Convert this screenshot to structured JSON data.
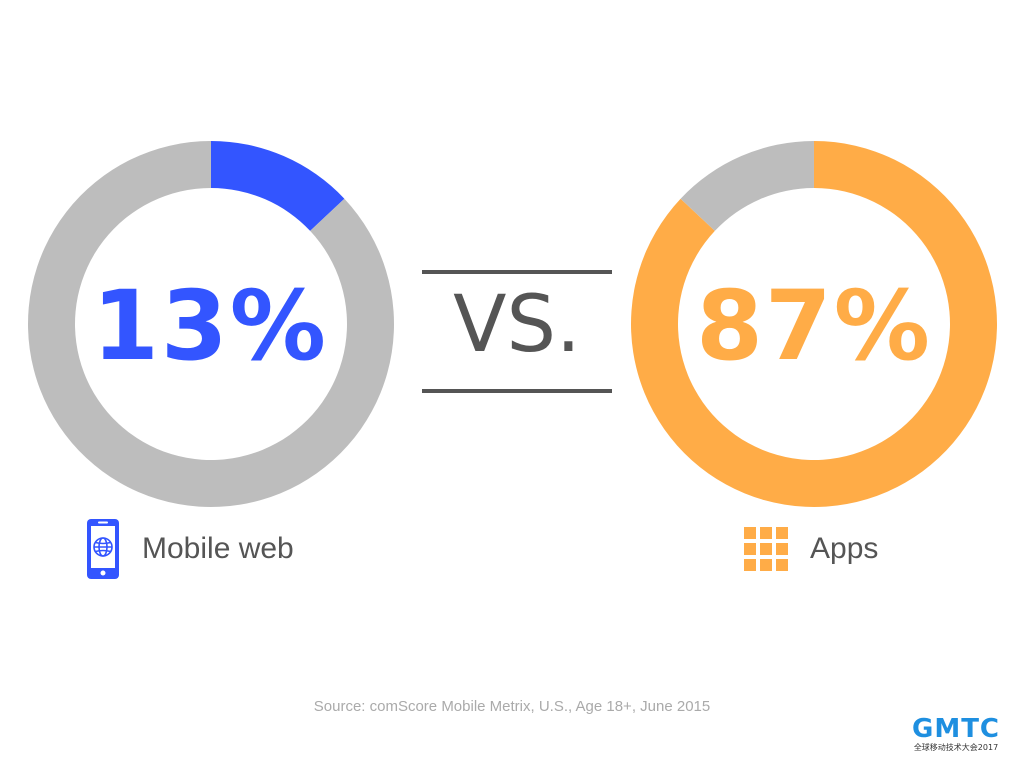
{
  "chart_data": [
    {
      "type": "pie",
      "donut": true,
      "center_label": "13%",
      "legend_label": "Mobile web",
      "legend_icon": "smartphone-globe-icon",
      "slices": [
        {
          "value": 13,
          "color": "#3355ff"
        },
        {
          "value": 87,
          "color": "#bdbdbd"
        }
      ]
    },
    {
      "type": "pie",
      "donut": true,
      "center_label": "87%",
      "legend_label": "Apps",
      "legend_icon": "app-grid-icon",
      "slices": [
        {
          "value": 87,
          "color": "#ffac47"
        },
        {
          "value": 13,
          "color": "#bdbdbd"
        }
      ]
    }
  ],
  "vs_text": "VS.",
  "source": "Source: comScore Mobile Metrix, U.S., Age 18+, June 2015",
  "logo": {
    "word": "GMTC",
    "subtitle": "全球移动技术大会2017"
  },
  "colors": {
    "blue": "#3355ff",
    "orange": "#ffac47",
    "gray": "#bdbdbd",
    "text": "#555555"
  }
}
